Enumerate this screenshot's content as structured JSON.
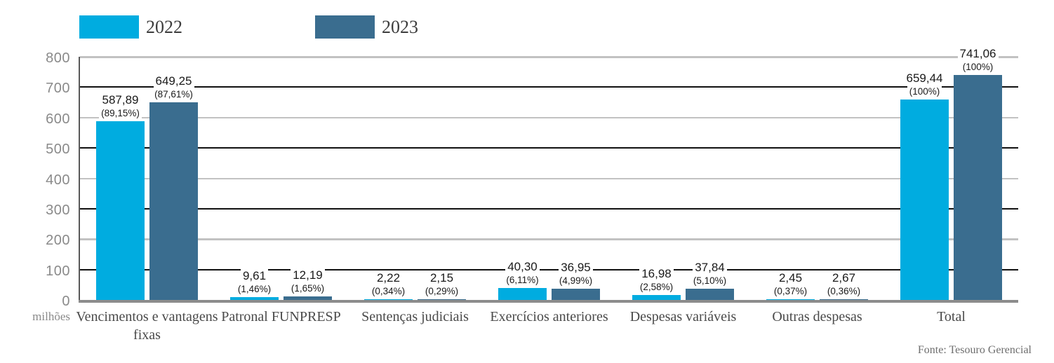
{
  "legend": {
    "items": [
      {
        "label": "2022",
        "color": "#00ACE0"
      },
      {
        "label": "2023",
        "color": "#3A6D8F"
      }
    ]
  },
  "chart_data": {
    "type": "bar",
    "title": "",
    "unit_label": "milhões",
    "source": "Fonte: Tesouro Gerencial",
    "categories": [
      "Vencimentos e vantagens fixas",
      "Patronal FUNPRESP",
      "Sentenças judiciais",
      "Exercícios anteriores",
      "Despesas variáveis",
      "Outras despesas",
      "Total"
    ],
    "series": [
      {
        "name": "2022",
        "color": "#00ACE0",
        "values": [
          587.89,
          9.61,
          2.22,
          40.3,
          16.98,
          2.45,
          659.44
        ],
        "value_labels": [
          "587,89",
          "9,61",
          "2,22",
          "40,30",
          "16,98",
          "2,45",
          "659,44"
        ],
        "pct_labels": [
          "(89,15%)",
          "(1,46%)",
          "(0,34%)",
          "(6,11%)",
          "(2,58%)",
          "(0,37%)",
          "(100%)"
        ]
      },
      {
        "name": "2023",
        "color": "#3A6D8F",
        "values": [
          649.25,
          12.19,
          2.15,
          36.95,
          37.84,
          2.67,
          741.06
        ],
        "value_labels": [
          "649,25",
          "12,19",
          "2,15",
          "36,95",
          "37,84",
          "2,67",
          "741,06"
        ],
        "pct_labels": [
          "(87,61%)",
          "(1,65%)",
          "(0,29%)",
          "(4,99%)",
          "(5,10%)",
          "(0,36%)",
          "(100%)"
        ]
      }
    ],
    "ylim": [
      0,
      800
    ],
    "yticks": [
      0,
      100,
      200,
      300,
      400,
      500,
      600,
      700,
      800
    ],
    "grid": "horizontal, alternating dark (odd hundreds) and light gray (even hundreds)",
    "legend_position": "top-left"
  }
}
